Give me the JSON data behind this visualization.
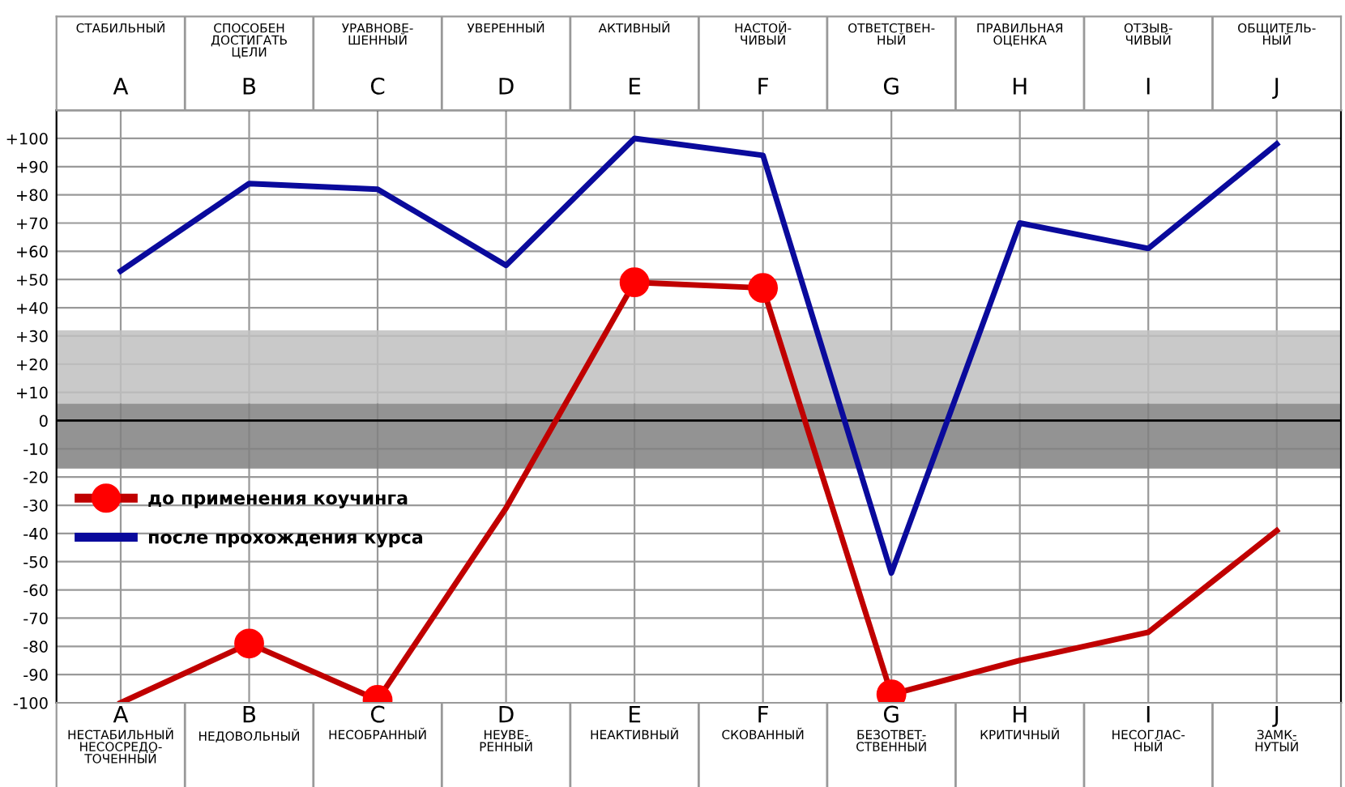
{
  "chart_data": {
    "type": "line",
    "categories": [
      "A",
      "B",
      "C",
      "D",
      "E",
      "F",
      "G",
      "H",
      "I",
      "J"
    ],
    "series": [
      {
        "name": "до применения коучинга",
        "color": "#c00000",
        "values": [
          -100,
          -79,
          -99,
          -31,
          49,
          47,
          -97,
          -85,
          -75,
          -39
        ]
      },
      {
        "type": "scatter",
        "color": "#ff0000",
        "marker": "circle",
        "x": [
          "B",
          "C",
          "E",
          "F",
          "G"
        ],
        "values": [
          -79,
          -99,
          49,
          47,
          -97
        ]
      },
      {
        "name": "после прохождения курса",
        "color": "#0a0a9c",
        "values": [
          53,
          84,
          82,
          55,
          100,
          94,
          -54,
          70,
          61,
          98
        ]
      }
    ],
    "ylim": [
      -100,
      110
    ],
    "yticks": [
      {
        "value": -100,
        "label": "-100"
      },
      {
        "value": -90,
        "label": "-90"
      },
      {
        "value": -80,
        "label": "-80"
      },
      {
        "value": -70,
        "label": "-70"
      },
      {
        "value": -60,
        "label": "-60"
      },
      {
        "value": -50,
        "label": "-50"
      },
      {
        "value": -40,
        "label": "-40"
      },
      {
        "value": -30,
        "label": "-30"
      },
      {
        "value": -20,
        "label": "-20"
      },
      {
        "value": -10,
        "label": "-10"
      },
      0,
      {
        "value": 10,
        "label": "+10"
      },
      {
        "value": 20,
        "label": "+20"
      },
      {
        "value": 30,
        "label": "+30"
      },
      {
        "value": 40,
        "label": "+40"
      },
      {
        "value": 50,
        "label": "+50"
      },
      {
        "value": 60,
        "label": "+60"
      },
      {
        "value": 70,
        "label": "+70"
      },
      {
        "value": 80,
        "label": "+80"
      },
      {
        "value": 90,
        "label": "+90"
      },
      {
        "value": 100,
        "label": "+100"
      }
    ],
    "bands": [
      {
        "axis": "y",
        "from": 6,
        "to": 32,
        "color": "#c0c0c0"
      },
      {
        "axis": "y",
        "from": -17,
        "to": 6,
        "color": "#808080"
      }
    ],
    "ref_lines": [
      {
        "axis": "y",
        "value": 0,
        "color": "#000000"
      }
    ],
    "annotations": [
      "СТАБИЛЬНЫЙ",
      "СПОСОБЕН\nДОСТИГАТЬ\nЦЕЛИ",
      "УРАВНОВЕ-\nШЕННЫЙ",
      "УВЕРЕННЫЙ",
      "АКТИВНЫЙ",
      "НАСТОЙ-\nЧИВЫЙ",
      "ОТВЕТСТВЕН-\nНЫЙ",
      "ПРАВИЛЬНАЯ\nОЦЕНКА",
      "ОТЗЫВ-\nЧИВЫЙ",
      "ОБЩИТЕЛЬ-\nНЫЙ",
      "НЕСТАБИЛЬНЫЙ\nНЕСОСРЕДО-\nТОЧЕННЫЙ",
      "НЕДОВОЛЬНЫЙ",
      "НЕСОБРАННЫЙ",
      "НЕУВЕ-\nРЕННЫЙ",
      "НЕАКТИВНЫЙ",
      "СКОВАННЫЙ",
      "БЕЗОТВЕТ-\nСТВЕННЫЙ",
      "КРИТИЧНЫЙ",
      "НЕСОГЛАС-\nНЫЙ",
      "ЗАМК-\nНУТЫЙ"
    ],
    "grid": true,
    "legend": "left"
  }
}
